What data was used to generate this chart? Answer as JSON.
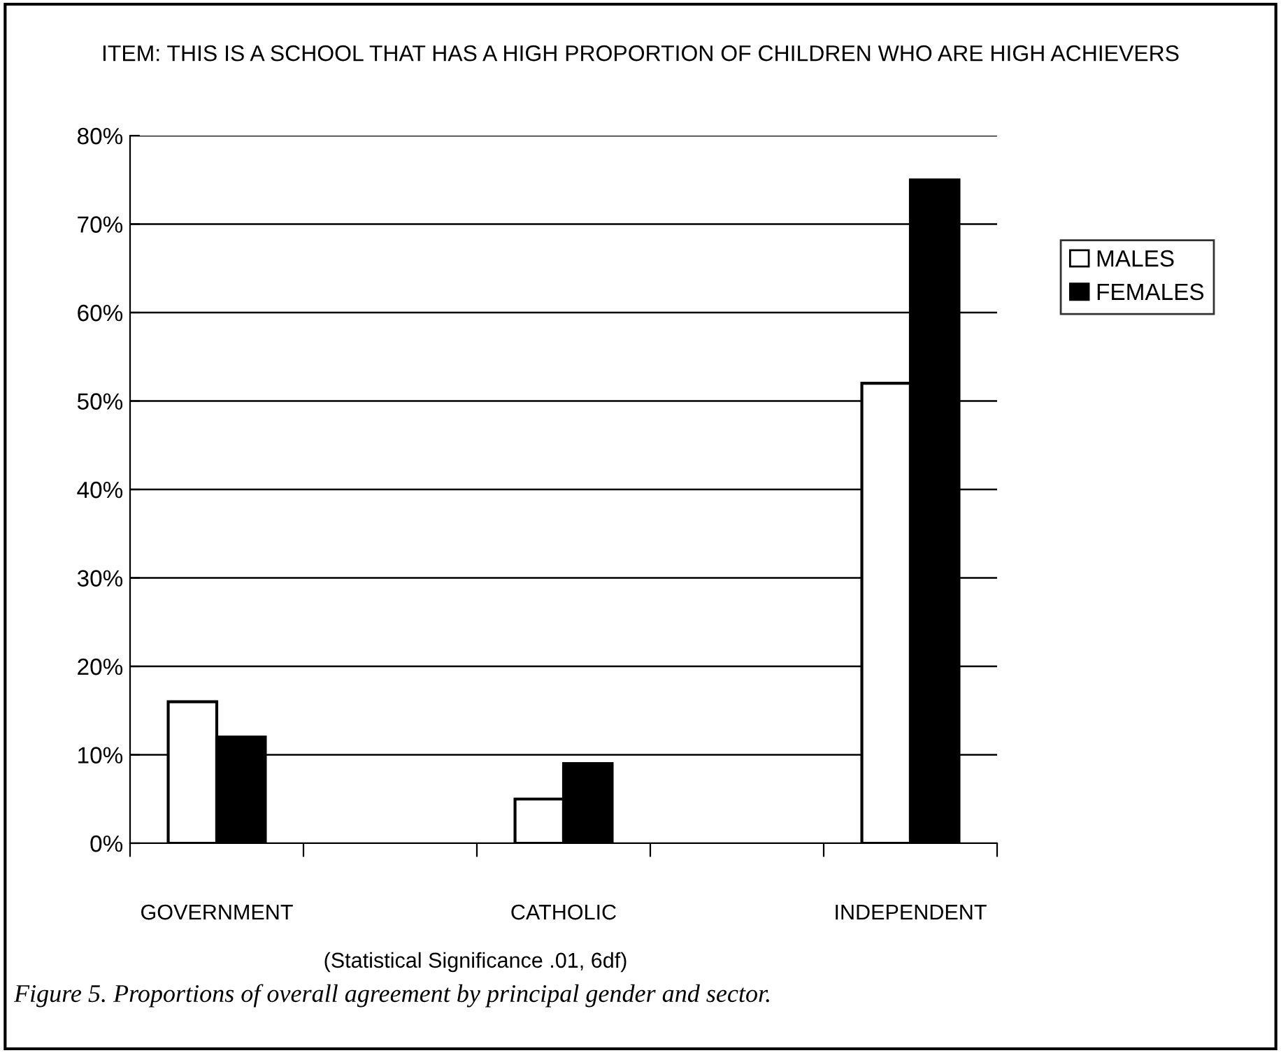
{
  "chart_data": {
    "type": "bar",
    "title": "ITEM: THIS IS A SCHOOL THAT HAS A HIGH PROPORTION OF CHILDREN WHO ARE HIGH ACHIEVERS",
    "categories": [
      "GOVERNMENT",
      null,
      "CATHOLIC",
      null,
      "INDEPENDENT"
    ],
    "series": [
      {
        "name": "MALES",
        "color": "#ffffff",
        "values": [
          16,
          null,
          5,
          null,
          52
        ]
      },
      {
        "name": "FEMALES",
        "color": "#000000",
        "values": [
          12,
          null,
          9,
          null,
          75
        ]
      }
    ],
    "ylim": [
      0,
      80
    ],
    "yticks": [
      {
        "value": 0,
        "label": "0%"
      },
      {
        "value": 10,
        "label": "10%"
      },
      {
        "value": 20,
        "label": "20%"
      },
      {
        "value": 30,
        "label": "30%"
      },
      {
        "value": 40,
        "label": "40%"
      },
      {
        "value": 50,
        "label": "50%"
      },
      {
        "value": 60,
        "label": "60%"
      },
      {
        "value": 70,
        "label": "70%"
      },
      {
        "value": 80,
        "label": "80%"
      }
    ],
    "grid": "y",
    "legend": "right",
    "annotations": [
      "(Statistical Significance .01, 6df)",
      "Figure 5. Proportions of overall agreement by principal gender and sector."
    ]
  }
}
